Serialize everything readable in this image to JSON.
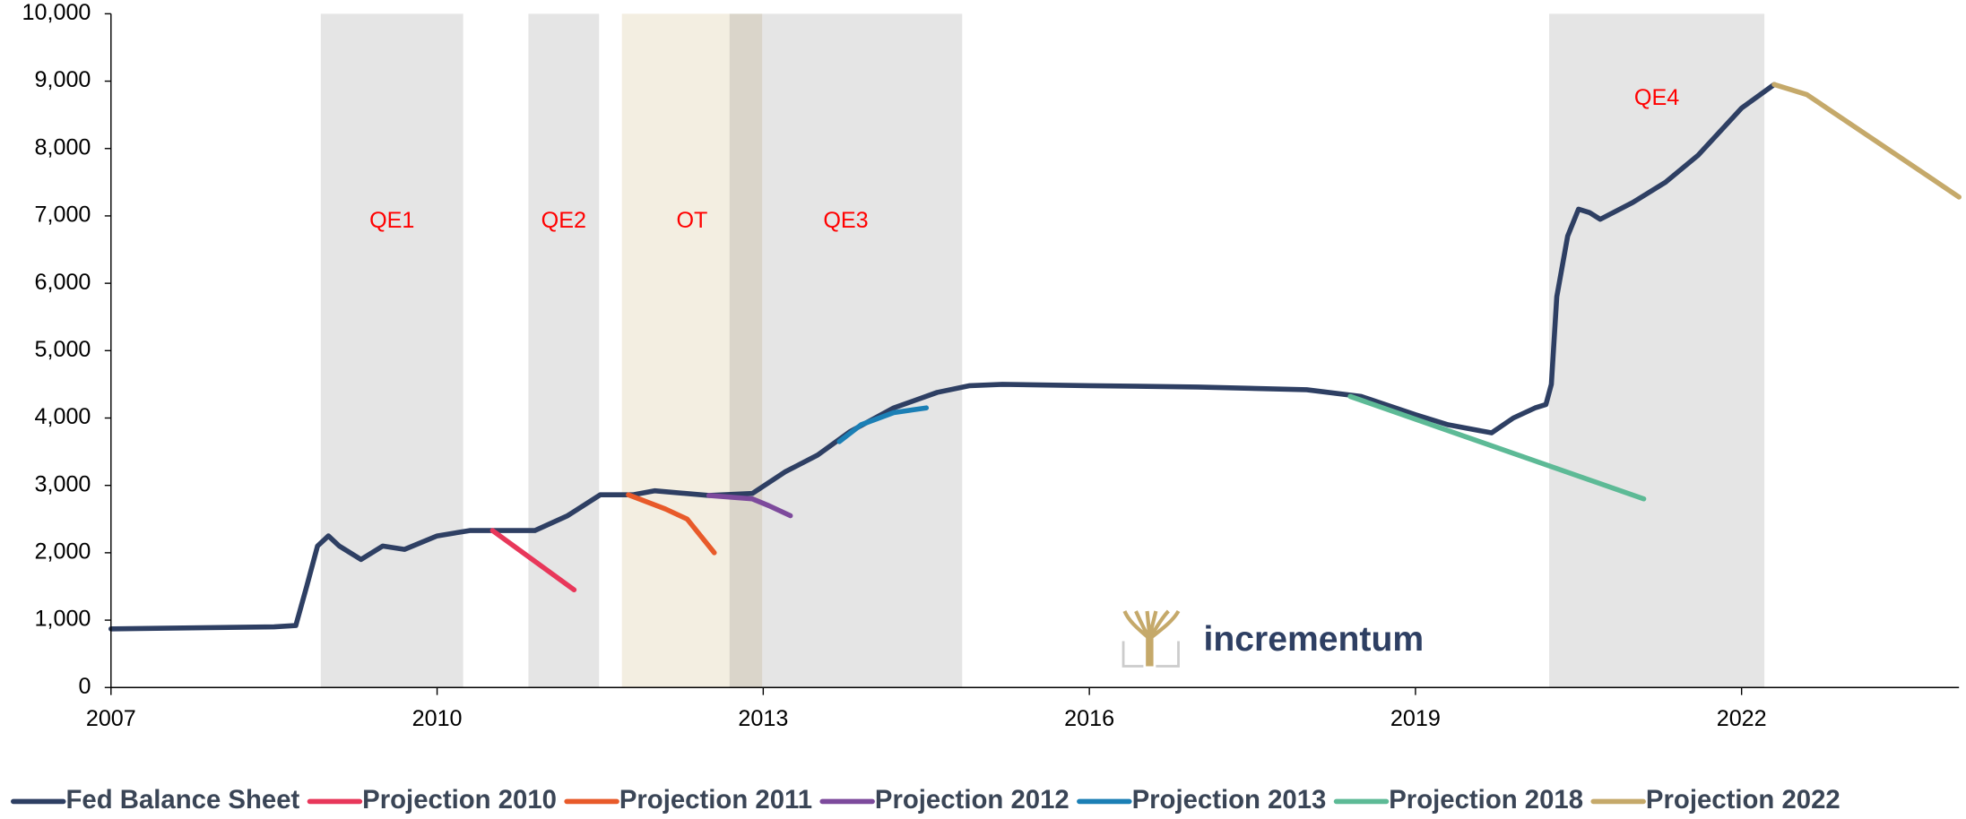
{
  "chart_data": {
    "type": "line",
    "xlim": [
      2007,
      2024
    ],
    "xticks": [
      2007,
      2010,
      2013,
      2016,
      2019,
      2022
    ],
    "ylim": [
      0,
      10000
    ],
    "yticks": [
      0,
      {
        "value": 1000,
        "label": "1,000"
      },
      {
        "value": 2000,
        "label": "2,000"
      },
      {
        "value": 3000,
        "label": "3,000"
      },
      {
        "value": 4000,
        "label": "4,000"
      },
      {
        "value": 5000,
        "label": "5,000"
      },
      {
        "value": 6000,
        "label": "6,000"
      },
      {
        "value": 7000,
        "label": "7,000"
      },
      {
        "value": 8000,
        "label": "8,000"
      },
      {
        "value": 9000,
        "label": "9,000"
      },
      {
        "value": 10000,
        "label": "10,000"
      }
    ],
    "bands": [
      {
        "label": "OT",
        "x0": 2011.7,
        "x1": 2012.99,
        "color": "#f3eee1"
      },
      {
        "label": "QE1",
        "x0": 2008.93,
        "x1": 2010.24,
        "color": "#e6e6e6"
      },
      {
        "label": "QE2",
        "x0": 2010.84,
        "x1": 2011.49,
        "color": "#e6e6e6"
      },
      {
        "label": "QE3",
        "x0": 2012.69,
        "x1": 2014.83,
        "color": "#e6e6e6"
      },
      {
        "label": "QE4",
        "x0": 2020.23,
        "x1": 2022.21,
        "color": "#e6e6e6"
      }
    ],
    "logo_text": "incrementum",
    "series": [
      {
        "name": "Fed Balance Sheet",
        "color": "#2e3f63",
        "x": [
          2007.0,
          2007.5,
          2008.0,
          2008.5,
          2008.7,
          2008.8,
          2008.9,
          2009.0,
          2009.1,
          2009.3,
          2009.5,
          2009.7,
          2010.0,
          2010.3,
          2010.5,
          2010.9,
          2011.2,
          2011.5,
          2011.8,
          2012.0,
          2012.5,
          2012.9,
          2013.2,
          2013.5,
          2013.8,
          2014.2,
          2014.6,
          2014.9,
          2015.2,
          2016.0,
          2017.0,
          2018.0,
          2018.5,
          2019.0,
          2019.3,
          2019.7,
          2019.9,
          2020.1,
          2020.2,
          2020.25,
          2020.3,
          2020.4,
          2020.5,
          2020.6,
          2020.7,
          2021.0,
          2021.3,
          2021.6,
          2022.0,
          2022.3
        ],
        "values": [
          870,
          880,
          890,
          900,
          920,
          1500,
          2100,
          2250,
          2100,
          1900,
          2100,
          2050,
          2250,
          2330,
          2330,
          2330,
          2550,
          2860,
          2860,
          2920,
          2850,
          2880,
          3200,
          3450,
          3800,
          4150,
          4380,
          4480,
          4500,
          4480,
          4460,
          4420,
          4320,
          4050,
          3900,
          3780,
          4000,
          4150,
          4200,
          4500,
          5800,
          6700,
          7100,
          7050,
          6950,
          7200,
          7500,
          7900,
          8600,
          8950
        ]
      },
      {
        "name": "Projection 2010",
        "color": "#e8375a",
        "x": [
          2010.51,
          2011.26
        ],
        "values": [
          2330,
          1450
        ]
      },
      {
        "name": "Projection 2011",
        "color": "#e85a2a",
        "x": [
          2011.76,
          2012.1,
          2012.3,
          2012.55
        ],
        "values": [
          2860,
          2650,
          2500,
          2000
        ]
      },
      {
        "name": "Projection 2012",
        "color": "#7d4a9c",
        "x": [
          2012.5,
          2012.9,
          2013.05,
          2013.25
        ],
        "values": [
          2850,
          2800,
          2700,
          2550
        ]
      },
      {
        "name": "Projection 2013",
        "color": "#1b7fb5",
        "x": [
          2013.7,
          2013.9,
          2014.2,
          2014.5
        ],
        "values": [
          3650,
          3900,
          4080,
          4150
        ]
      },
      {
        "name": "Projection 2018",
        "color": "#5dba96",
        "x": [
          2018.4,
          2021.1
        ],
        "values": [
          4320,
          2800
        ]
      },
      {
        "name": "Projection 2022",
        "color": "#c5a96a",
        "x": [
          2022.3,
          2022.6,
          2024.0
        ],
        "values": [
          8950,
          8800,
          7280
        ]
      }
    ]
  }
}
